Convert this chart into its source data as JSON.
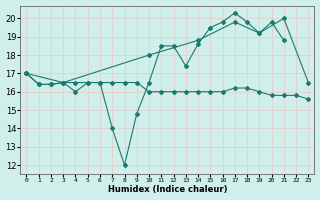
{
  "xlabel": "Humidex (Indice chaleur)",
  "background_color": "#d0eeea",
  "grid_color": "#e8c8c8",
  "line_color": "#1a7a6e",
  "xlim": [
    -0.5,
    23.5
  ],
  "ylim": [
    11.5,
    20.7
  ],
  "yticks": [
    12,
    13,
    14,
    15,
    16,
    17,
    18,
    19,
    20
  ],
  "xticks": [
    0,
    1,
    2,
    3,
    4,
    5,
    6,
    7,
    8,
    9,
    10,
    11,
    12,
    13,
    14,
    15,
    16,
    17,
    18,
    19,
    20,
    21,
    22,
    23
  ],
  "lines": [
    {
      "x": [
        0,
        1,
        2,
        3,
        4,
        5,
        6,
        7,
        8,
        9,
        10,
        11,
        12,
        13,
        14,
        15,
        16,
        17,
        18,
        19,
        20,
        21
      ],
      "y": [
        17.0,
        16.4,
        16.4,
        16.5,
        16.0,
        16.5,
        16.5,
        14.0,
        12.0,
        14.8,
        16.5,
        18.5,
        18.5,
        17.4,
        18.6,
        19.5,
        19.8,
        20.3,
        19.8,
        19.2,
        19.8,
        18.8
      ]
    },
    {
      "x": [
        0,
        1,
        2,
        3,
        4,
        5,
        6,
        7,
        8,
        9,
        10,
        11,
        12,
        13,
        14,
        15,
        16,
        17,
        18,
        19,
        20,
        21,
        22,
        23
      ],
      "y": [
        17.0,
        16.4,
        16.4,
        16.5,
        16.5,
        16.5,
        16.5,
        16.5,
        16.5,
        16.5,
        16.0,
        16.0,
        16.0,
        16.0,
        16.0,
        16.0,
        16.0,
        16.2,
        16.2,
        16.0,
        15.8,
        15.8,
        15.8,
        15.6
      ]
    },
    {
      "x": [
        0,
        3,
        10,
        14,
        17,
        19,
        21,
        23
      ],
      "y": [
        17.0,
        16.5,
        18.0,
        18.8,
        19.8,
        19.2,
        20.0,
        16.5
      ]
    }
  ]
}
